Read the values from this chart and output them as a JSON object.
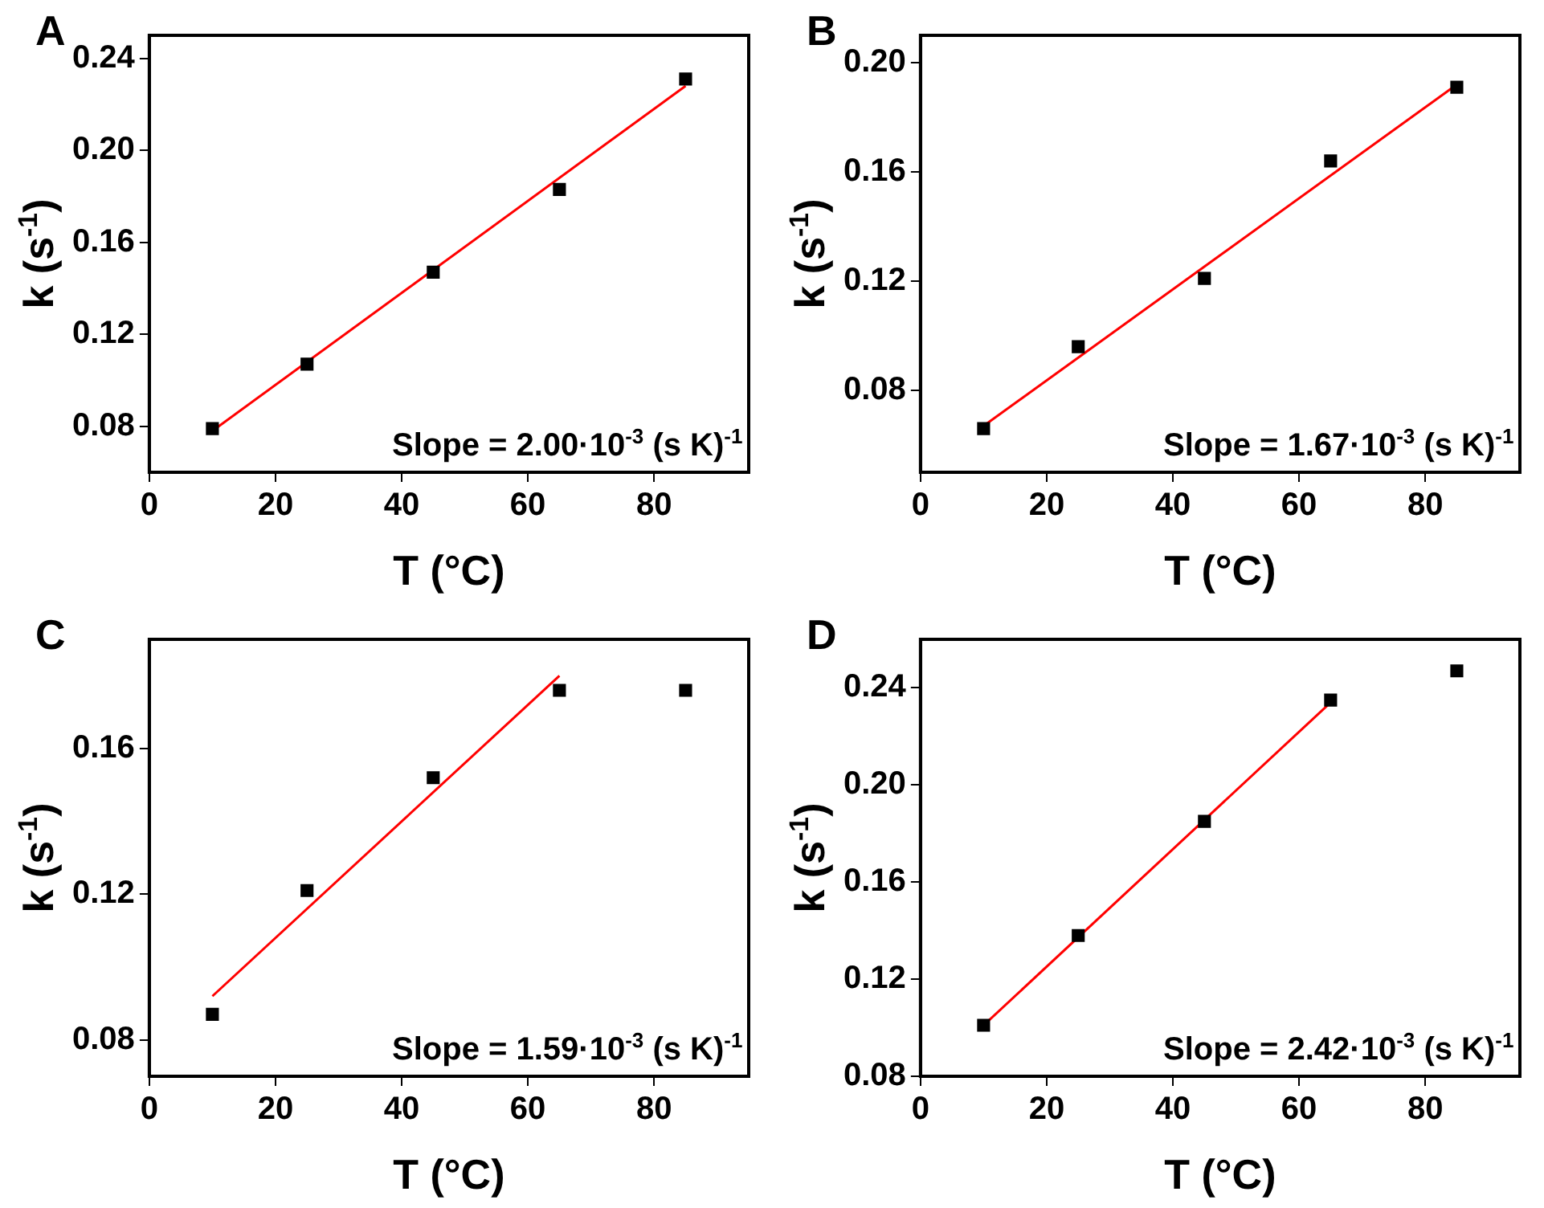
{
  "chart_data": [
    {
      "type": "scatter",
      "title": "A",
      "xlabel": "T (°C)",
      "ylabel": "k (s$^{-1}$)",
      "xlim": [
        0,
        95
      ],
      "xticks": [
        0,
        20,
        40,
        60,
        80
      ],
      "ylim": [
        0.06,
        0.25
      ],
      "yticks": [
        {
          "value": 0.08,
          "label": "0.08"
        },
        {
          "value": 0.12,
          "label": "0.12"
        },
        {
          "value": 0.16,
          "label": "0.16"
        },
        {
          "value": 0.2,
          "label": "0.20"
        },
        {
          "value": 0.24,
          "label": "0.24"
        }
      ],
      "grid": false,
      "legend": false,
      "annotations": [
        "Slope = 2.00·10$^{-3}$ (s K)$^{-1}$"
      ],
      "series": [
        {
          "marker": "square",
          "color": "#000000",
          "x": [
            10,
            25,
            45,
            65,
            85
          ],
          "values": [
            0.079,
            0.107,
            0.147,
            0.183,
            0.231
          ]
        },
        {
          "type": "line",
          "marker": "none",
          "color": "#ff0000",
          "x": [
            10,
            85
          ],
          "values": [
            0.078,
            0.228
          ]
        }
      ]
    },
    {
      "type": "scatter",
      "title": "B",
      "xlabel": "T (°C)",
      "ylabel": "k (s$^{-1}$)",
      "xlim": [
        0,
        95
      ],
      "xticks": [
        0,
        20,
        40,
        60,
        80
      ],
      "ylim": [
        0.05,
        0.21
      ],
      "yticks": [
        {
          "value": 0.08,
          "label": "0.08"
        },
        {
          "value": 0.12,
          "label": "0.12"
        },
        {
          "value": 0.16,
          "label": "0.16"
        },
        {
          "value": 0.2,
          "label": "0.20"
        }
      ],
      "grid": false,
      "legend": false,
      "annotations": [
        "Slope = 1.67·10$^{-3}$ (s K)$^{-1}$"
      ],
      "series": [
        {
          "marker": "square",
          "color": "#000000",
          "x": [
            10,
            25,
            45,
            65,
            85
          ],
          "values": [
            0.066,
            0.096,
            0.121,
            0.164,
            0.191
          ]
        },
        {
          "type": "line",
          "marker": "none",
          "color": "#ff0000",
          "x": [
            10,
            85
          ],
          "values": [
            0.067,
            0.192
          ]
        }
      ]
    },
    {
      "type": "scatter",
      "title": "C",
      "xlabel": "T (°C)",
      "ylabel": "k (s$^{-1}$)",
      "xlim": [
        0,
        95
      ],
      "xticks": [
        0,
        20,
        40,
        60,
        80
      ],
      "ylim": [
        0.07,
        0.19
      ],
      "yticks": [
        {
          "value": 0.08,
          "label": "0.08"
        },
        {
          "value": 0.12,
          "label": "0.12"
        },
        {
          "value": 0.16,
          "label": "0.16"
        }
      ],
      "grid": false,
      "legend": false,
      "annotations": [
        "Slope = 1.59·10$^{-3}$ (s K)$^{-1}$"
      ],
      "series": [
        {
          "marker": "square",
          "color": "#000000",
          "x": [
            10,
            25,
            45,
            65,
            85
          ],
          "values": [
            0.087,
            0.121,
            0.152,
            0.176,
            0.176
          ]
        },
        {
          "type": "line",
          "marker": "none",
          "color": "#ff0000",
          "x": [
            10,
            65
          ],
          "values": [
            0.092,
            0.18
          ]
        }
      ]
    },
    {
      "type": "scatter",
      "title": "D",
      "xlabel": "T (°C)",
      "ylabel": "k (s$^{-1}$)",
      "xlim": [
        0,
        95
      ],
      "xticks": [
        0,
        20,
        40,
        60,
        80
      ],
      "ylim": [
        0.08,
        0.26
      ],
      "yticks": [
        {
          "value": 0.08,
          "label": "0.08"
        },
        {
          "value": 0.12,
          "label": "0.12"
        },
        {
          "value": 0.16,
          "label": "0.16"
        },
        {
          "value": 0.2,
          "label": "0.20"
        },
        {
          "value": 0.24,
          "label": "0.24"
        }
      ],
      "grid": false,
      "legend": false,
      "annotations": [
        "Slope = 2.42·10$^{-3}$ (s K)$^{-1}$"
      ],
      "series": [
        {
          "marker": "square",
          "color": "#000000",
          "x": [
            10,
            25,
            45,
            65,
            85
          ],
          "values": [
            0.101,
            0.138,
            0.185,
            0.235,
            0.247
          ]
        },
        {
          "type": "line",
          "marker": "none",
          "color": "#ff0000",
          "x": [
            10,
            65
          ],
          "values": [
            0.101,
            0.234
          ]
        }
      ]
    }
  ]
}
